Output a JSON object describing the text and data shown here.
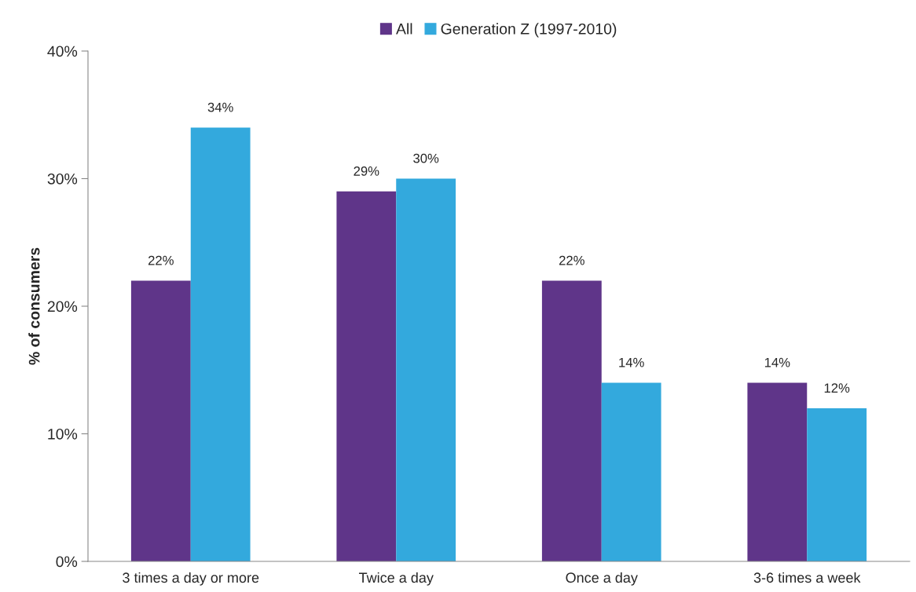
{
  "chart_data": {
    "type": "bar",
    "ylabel": "% of consumers",
    "categories": [
      "3 times a day or more",
      "Twice a day",
      "Once a day",
      "3-6 times a week"
    ],
    "series": [
      {
        "name": "All",
        "color": "#5f3589",
        "values": [
          22,
          29,
          22,
          14
        ],
        "value_labels": [
          "22%",
          "29%",
          "22%",
          "14%"
        ]
      },
      {
        "name": "Generation Z (1997-2010)",
        "color": "#33a9dd",
        "values": [
          34,
          30,
          14,
          12
        ],
        "value_labels": [
          "34%",
          "30%",
          "14%",
          "12%"
        ]
      }
    ],
    "ylim": [
      0,
      40
    ],
    "yticks": [
      {
        "value": 0,
        "label": "0%"
      },
      {
        "value": 10,
        "label": "10%"
      },
      {
        "value": 20,
        "label": "20%"
      },
      {
        "value": 30,
        "label": "30%"
      },
      {
        "value": 40,
        "label": "40%"
      }
    ],
    "grid": false,
    "legend": "top"
  }
}
